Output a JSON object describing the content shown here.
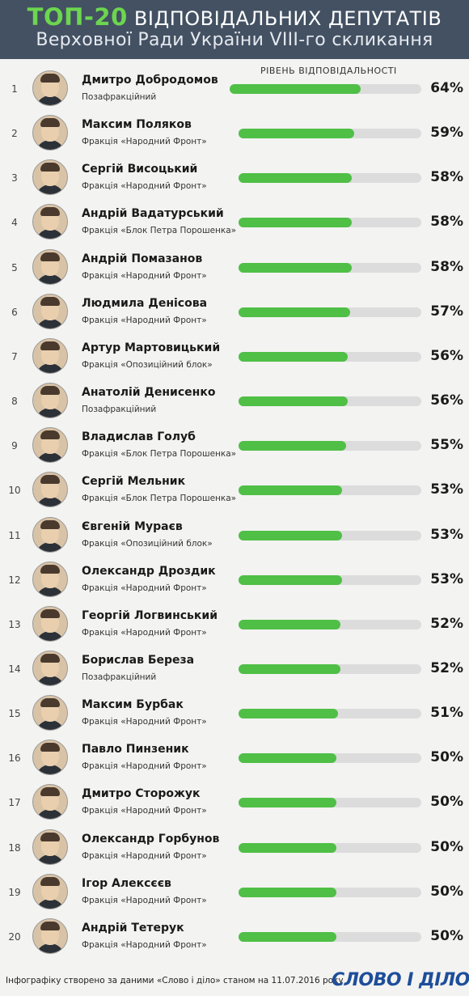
{
  "header": {
    "title_accent": "ТОП-20",
    "title_rest": "ВІДПОВІДАЛЬНИХ ДЕПУТАТІВ",
    "subtitle": "Верховної Ради України VIII-го скликання"
  },
  "level_label": "РІВЕНЬ ВІДПОВІДАЛЬНОСТІ",
  "colors": {
    "header_bg": "#435163",
    "accent": "#6cd64f",
    "bar_fill": "#4fbf46",
    "bar_track": "#dcdcdc"
  },
  "chart_data": {
    "type": "bar",
    "orientation": "horizontal",
    "value_unit": "%",
    "xlim": [
      0,
      100
    ],
    "items": [
      {
        "rank": "1",
        "name": "Дмитро Добродомов",
        "faction": "Позафракційний",
        "value": 64,
        "label": "64%"
      },
      {
        "rank": "2",
        "name": "Максим Поляков",
        "faction": "Фракція «Народний Фронт»",
        "value": 59,
        "label": "59%"
      },
      {
        "rank": "3",
        "name": "Сергій Висоцький",
        "faction": "Фракція «Народний Фронт»",
        "value": 58,
        "label": "58%"
      },
      {
        "rank": "4",
        "name": "Андрій Вадатурський",
        "faction": "Фракція «Блок Петра Порошенка»",
        "value": 58,
        "label": "58%"
      },
      {
        "rank": "5",
        "name": "Андрій Помазанов",
        "faction": "Фракція «Народний Фронт»",
        "value": 58,
        "label": "58%"
      },
      {
        "rank": "6",
        "name": "Людмила Денісова",
        "faction": "Фракція «Народний Фронт»",
        "value": 57,
        "label": "57%"
      },
      {
        "rank": "7",
        "name": "Артур Мартовицький",
        "faction": "Фракція «Опозиційний блок»",
        "value": 56,
        "label": "56%"
      },
      {
        "rank": "8",
        "name": "Анатолій Денисенко",
        "faction": "Позафракційний",
        "value": 56,
        "label": "56%"
      },
      {
        "rank": "9",
        "name": "Владислав Голуб",
        "faction": "Фракція «Блок Петра Порошенка»",
        "value": 55,
        "label": "55%"
      },
      {
        "rank": "10",
        "name": "Сергій Мельник",
        "faction": "Фракція «Блок Петра Порошенка»",
        "value": 53,
        "label": "53%"
      },
      {
        "rank": "11",
        "name": "Євгеній Мураєв",
        "faction": "Фракція «Опозиційний блок»",
        "value": 53,
        "label": "53%"
      },
      {
        "rank": "12",
        "name": "Олександр Дроздик",
        "faction": "Фракція «Народний Фронт»",
        "value": 53,
        "label": "53%"
      },
      {
        "rank": "13",
        "name": "Георгій Логвинський",
        "faction": "Фракція «Народний Фронт»",
        "value": 52,
        "label": "52%"
      },
      {
        "rank": "14",
        "name": "Борислав Береза",
        "faction": "Позафракційний",
        "value": 52,
        "label": "52%"
      },
      {
        "rank": "15",
        "name": "Максим Бурбак",
        "faction": "Фракція «Народний Фронт»",
        "value": 51,
        "label": "51%"
      },
      {
        "rank": "16",
        "name": "Павло Пинзеник",
        "faction": "Фракція «Народний Фронт»",
        "value": 50,
        "label": "50%"
      },
      {
        "rank": "17",
        "name": "Дмитро Сторожук",
        "faction": "Фракція «Народний Фронт»",
        "value": 50,
        "label": "50%"
      },
      {
        "rank": "18",
        "name": "Олександр Горбунов",
        "faction": "Фракція «Народний Фронт»",
        "value": 50,
        "label": "50%"
      },
      {
        "rank": "19",
        "name": "Ігор Алексєєв",
        "faction": "Фракція «Народний Фронт»",
        "value": 50,
        "label": "50%"
      },
      {
        "rank": "20",
        "name": "Андрій Тетерук",
        "faction": "Фракція «Народний Фронт»",
        "value": 50,
        "label": "50%"
      }
    ]
  },
  "footer": {
    "source": "Інфографіку створено за даними «Слово і діло» станом на 11.07.2016 року",
    "logo_text": "СЛОВО І ДІЛО"
  }
}
